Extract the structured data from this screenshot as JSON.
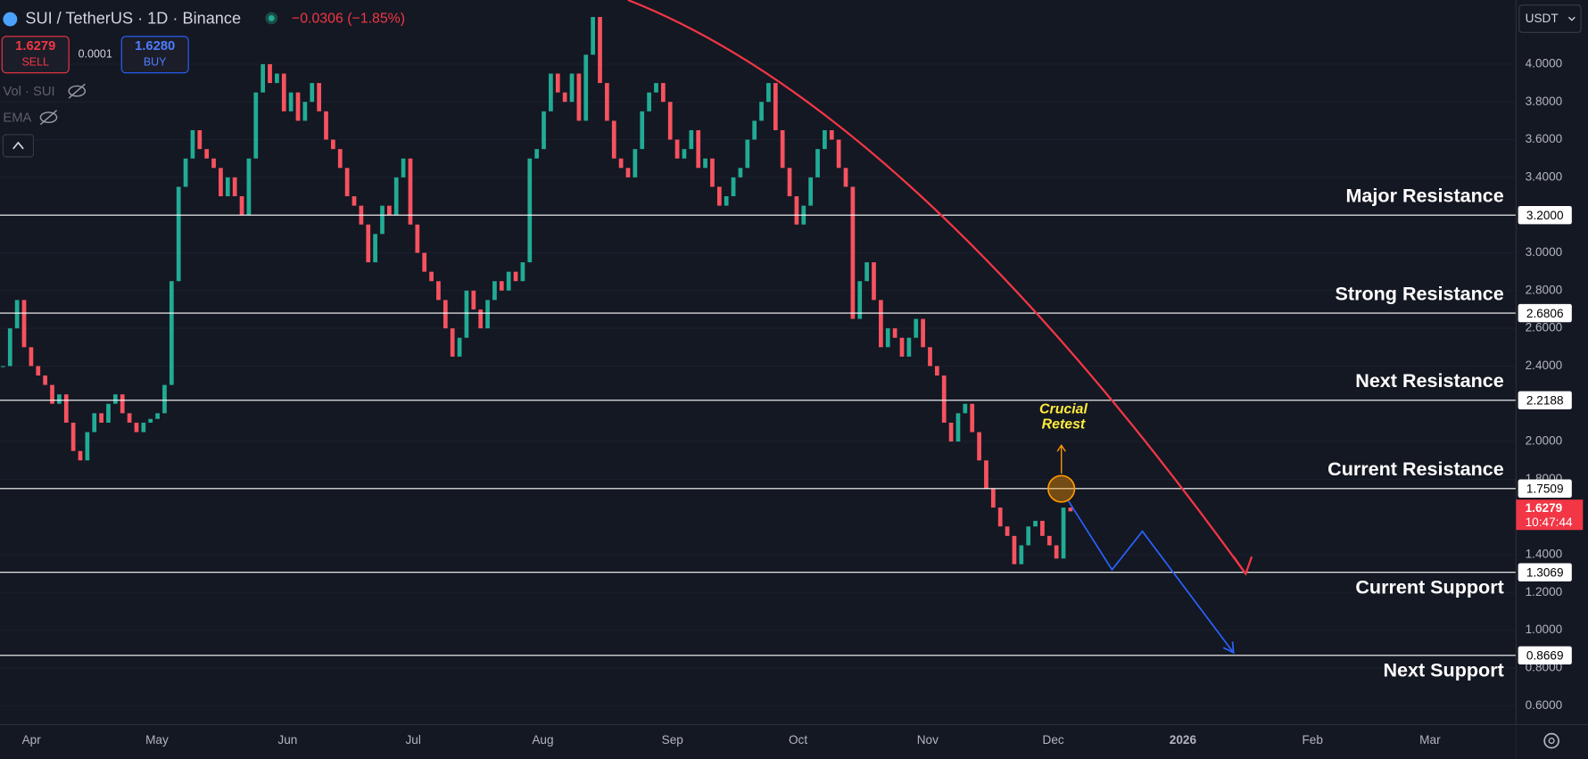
{
  "header": {
    "symbol": "SUI / TetherUS · 1D · Binance",
    "change": "−0.0306 (−1.85%)",
    "sell_price": "1.6279",
    "sell_label": "SELL",
    "spread": "0.0001",
    "buy_price": "1.6280",
    "buy_label": "BUY",
    "indicators": [
      "Vol · SUI",
      "EMA"
    ],
    "currency": "USDT"
  },
  "chart_data": {
    "type": "candlestick",
    "closes": [
      2.4,
      2.6,
      2.75,
      2.5,
      2.4,
      2.35,
      2.3,
      2.2,
      2.25,
      2.1,
      1.95,
      1.9,
      2.05,
      2.15,
      2.1,
      2.2,
      2.25,
      2.15,
      2.1,
      2.05,
      2.1,
      2.12,
      2.15,
      2.3,
      2.85,
      3.35,
      3.5,
      3.65,
      3.55,
      3.5,
      3.45,
      3.3,
      3.4,
      3.3,
      3.2,
      3.5,
      3.85,
      4.0,
      3.9,
      3.95,
      3.75,
      3.85,
      3.7,
      3.8,
      3.9,
      3.75,
      3.6,
      3.55,
      3.45,
      3.3,
      3.25,
      3.15,
      2.95,
      3.1,
      3.25,
      3.2,
      3.4,
      3.5,
      3.15,
      3.0,
      2.9,
      2.85,
      2.75,
      2.6,
      2.45,
      2.55,
      2.8,
      2.7,
      2.6,
      2.75,
      2.85,
      2.8,
      2.9,
      2.85,
      2.95,
      3.5,
      3.55,
      3.75,
      3.95,
      3.85,
      3.8,
      3.95,
      3.7,
      4.05,
      4.25,
      3.9,
      3.7,
      3.5,
      3.45,
      3.4,
      3.55,
      3.75,
      3.85,
      3.9,
      3.8,
      3.6,
      3.5,
      3.55,
      3.65,
      3.45,
      3.5,
      3.35,
      3.25,
      3.3,
      3.4,
      3.45,
      3.6,
      3.7,
      3.8,
      3.9,
      3.65,
      3.45,
      3.3,
      3.15,
      3.25,
      3.4,
      3.55,
      3.65,
      3.6,
      3.45,
      3.35,
      2.65,
      2.85,
      2.95,
      2.75,
      2.5,
      2.6,
      2.55,
      2.45,
      2.55,
      2.65,
      2.5,
      2.4,
      2.35,
      2.1,
      2.0,
      2.15,
      2.2,
      2.05,
      1.9,
      1.75,
      1.65,
      1.55,
      1.5,
      1.35,
      1.45,
      1.55,
      1.58,
      1.5,
      1.45,
      1.38,
      1.65,
      1.63
    ],
    "up_color": "#22ab94",
    "down_color": "#f7525f",
    "ylim": [
      0.5,
      4.34
    ],
    "yticks": [
      {
        "value": 4,
        "label": "4.0000"
      },
      {
        "value": 3.8,
        "label": "3.8000"
      },
      {
        "value": 3.6,
        "label": "3.6000"
      },
      {
        "value": 3.4,
        "label": "3.4000"
      },
      {
        "value": 3,
        "label": "3.0000"
      },
      {
        "value": 2.8,
        "label": "2.8000"
      },
      {
        "value": 2.6,
        "label": "2.6000"
      },
      {
        "value": 2.4,
        "label": "2.4000"
      },
      {
        "value": 2,
        "label": "2.0000"
      },
      {
        "value": 1.8,
        "label": "1.8000"
      },
      {
        "value": 1.4,
        "label": "1.4000"
      },
      {
        "value": 1.2,
        "label": "1.2000"
      },
      {
        "value": 1,
        "label": "1.0000"
      },
      {
        "value": 0.8,
        "label": "0.8000"
      },
      {
        "value": 0.6,
        "label": "0.6000"
      }
    ],
    "x_labels": [
      "Apr",
      "May",
      "Jun",
      "Jul",
      "Aug",
      "Sep",
      "Oct",
      "Nov",
      "Dec",
      "2026",
      "Feb",
      "Mar"
    ],
    "levels": [
      {
        "name": "Major Resistance",
        "value": 3.2,
        "label": "3.2000"
      },
      {
        "name": "Strong Resistance",
        "value": 2.6806,
        "label": "2.6806"
      },
      {
        "name": "Next Resistance",
        "value": 2.2188,
        "label": "2.2188"
      },
      {
        "name": "Current Resistance",
        "value": 1.7509,
        "label": "1.7509"
      },
      {
        "name": "Current Support",
        "value": 1.3069,
        "label": "1.3069"
      },
      {
        "name": "Next Support",
        "value": 0.8669,
        "label": "0.8669"
      }
    ],
    "last_price": {
      "value": 1.6279,
      "label": "1.6279",
      "countdown": "10:47:44"
    },
    "annotation": [
      "Crucial",
      "Retest"
    ]
  }
}
